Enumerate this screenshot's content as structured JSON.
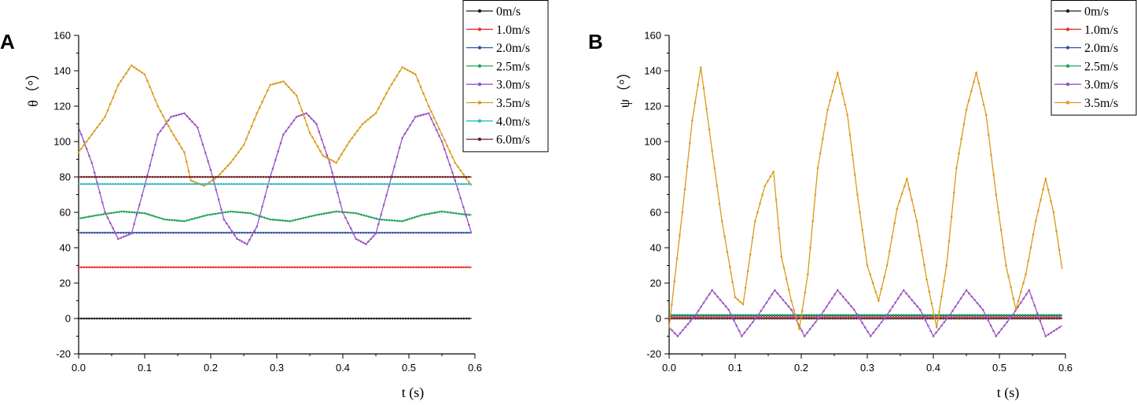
{
  "chart_data": [
    {
      "panel": "A",
      "type": "line",
      "xlabel": "t (s)",
      "ylabel": "θ（°）",
      "xlim": [
        0.0,
        0.6
      ],
      "ylim": [
        -20,
        160
      ],
      "xticks": [
        0.0,
        0.1,
        0.2,
        0.3,
        0.4,
        0.5,
        0.6
      ],
      "xtick_labels": [
        "0.0",
        "0.1",
        "0.2",
        "0.3",
        "0.4",
        "0.5",
        "0.6"
      ],
      "yticks": [
        -20,
        0,
        20,
        40,
        60,
        80,
        100,
        120,
        140,
        160
      ],
      "ytick_labels": [
        "-20",
        "0",
        "20",
        "40",
        "60",
        "80",
        "100",
        "120",
        "140",
        "160"
      ],
      "legend_position": "top-right",
      "series": [
        {
          "name": "0m/s",
          "color": "#1a1a1a",
          "x": [
            0.0,
            0.595
          ],
          "y": [
            0,
            0
          ]
        },
        {
          "name": "1.0m/s",
          "color": "#e8312f",
          "x": [
            0.0,
            0.595
          ],
          "y": [
            29,
            29
          ]
        },
        {
          "name": "2.0m/s",
          "color": "#2d56a8",
          "x": [
            0.0,
            0.595
          ],
          "y": [
            48.5,
            48.5
          ]
        },
        {
          "name": "2.5m/s",
          "color": "#22a35a",
          "x": [
            0.0,
            0.03,
            0.065,
            0.1,
            0.13,
            0.16,
            0.195,
            0.23,
            0.26,
            0.29,
            0.32,
            0.36,
            0.39,
            0.42,
            0.455,
            0.49,
            0.52,
            0.55,
            0.58,
            0.595
          ],
          "y": [
            56.5,
            58.5,
            60.5,
            59.5,
            56,
            55,
            58.5,
            60.5,
            59.5,
            56,
            55,
            58.5,
            60.5,
            59.5,
            56,
            55,
            58.5,
            60.5,
            59,
            58.5
          ]
        },
        {
          "name": "3.0m/s",
          "color": "#9a52c4",
          "x": [
            0.0,
            0.02,
            0.04,
            0.06,
            0.08,
            0.1,
            0.12,
            0.14,
            0.16,
            0.18,
            0.2,
            0.22,
            0.24,
            0.255,
            0.27,
            0.29,
            0.31,
            0.33,
            0.345,
            0.36,
            0.38,
            0.4,
            0.42,
            0.435,
            0.45,
            0.47,
            0.49,
            0.51,
            0.53,
            0.55,
            0.57,
            0.595
          ],
          "y": [
            108,
            88,
            60,
            45,
            48,
            75,
            104,
            114,
            116,
            108,
            84,
            56,
            45,
            42,
            52,
            80,
            104,
            114,
            116,
            110,
            88,
            60,
            45,
            42,
            48,
            75,
            102,
            114,
            116,
            100,
            78,
            48
          ]
        },
        {
          "name": "3.5m/s",
          "color": "#d99a19",
          "x": [
            0.0,
            0.02,
            0.04,
            0.06,
            0.08,
            0.1,
            0.12,
            0.14,
            0.16,
            0.17,
            0.19,
            0.21,
            0.23,
            0.25,
            0.27,
            0.29,
            0.31,
            0.33,
            0.35,
            0.37,
            0.39,
            0.41,
            0.43,
            0.45,
            0.47,
            0.49,
            0.51,
            0.53,
            0.55,
            0.57,
            0.595
          ],
          "y": [
            94,
            104,
            114,
            132,
            143,
            138,
            120,
            106,
            94,
            78,
            75,
            80,
            88,
            98,
            116,
            132,
            134,
            126,
            105,
            92,
            88,
            100,
            110,
            116,
            130,
            142,
            138,
            120,
            104,
            88,
            75
          ]
        },
        {
          "name": "4.0m/s",
          "color": "#2ab8c8",
          "x": [
            0.0,
            0.595
          ],
          "y": [
            76,
            76
          ]
        },
        {
          "name": "6.0m/s",
          "color": "#6b1f1f",
          "x": [
            0.0,
            0.595
          ],
          "y": [
            80,
            80
          ]
        }
      ]
    },
    {
      "panel": "B",
      "type": "line",
      "xlabel": "t (s)",
      "ylabel": "ψ（°）",
      "xlim": [
        0.0,
        0.6
      ],
      "ylim": [
        -20,
        160
      ],
      "xticks": [
        0.0,
        0.1,
        0.2,
        0.3,
        0.4,
        0.5,
        0.6
      ],
      "xtick_labels": [
        "0.0",
        "0.1",
        "0.2",
        "0.3",
        "0.4",
        "0.5",
        "0.6"
      ],
      "yticks": [
        -20,
        0,
        20,
        40,
        60,
        80,
        100,
        120,
        140,
        160
      ],
      "ytick_labels": [
        "-20",
        "0",
        "20",
        "40",
        "60",
        "80",
        "100",
        "120",
        "140",
        "160"
      ],
      "legend_position": "top-right",
      "series": [
        {
          "name": "0m/s",
          "color": "#1a1a1a",
          "x": [
            0.0,
            0.595
          ],
          "y": [
            0,
            0
          ]
        },
        {
          "name": "1.0m/s",
          "color": "#e8312f",
          "x": [
            0.0,
            0.595
          ],
          "y": [
            0.5,
            0.5
          ]
        },
        {
          "name": "2.0m/s",
          "color": "#2d56a8",
          "x": [
            0.0,
            0.595
          ],
          "y": [
            1.5,
            1.5
          ]
        },
        {
          "name": "2.5m/s",
          "color": "#22a35a",
          "x": [
            0.0,
            0.595
          ],
          "y": [
            2,
            2
          ]
        },
        {
          "name": "3.0m/s",
          "color": "#9a52c4",
          "x": [
            0.0,
            0.013,
            0.04,
            0.065,
            0.09,
            0.11,
            0.135,
            0.16,
            0.185,
            0.205,
            0.23,
            0.255,
            0.28,
            0.305,
            0.33,
            0.355,
            0.38,
            0.4,
            0.425,
            0.45,
            0.475,
            0.495,
            0.52,
            0.545,
            0.57,
            0.595
          ],
          "y": [
            -5,
            -10,
            2,
            16,
            5,
            -10,
            2,
            16,
            5,
            -10,
            2,
            16,
            5,
            -10,
            2,
            16,
            5,
            -10,
            2,
            16,
            5,
            -10,
            2,
            16,
            -10,
            -4
          ]
        },
        {
          "name": "3.5m/s",
          "color": "#d99a19",
          "x": [
            0.0,
            0.02,
            0.035,
            0.048,
            0.065,
            0.08,
            0.1,
            0.112,
            0.13,
            0.145,
            0.158,
            0.17,
            0.185,
            0.197,
            0.21,
            0.225,
            0.24,
            0.255,
            0.27,
            0.285,
            0.3,
            0.317,
            0.33,
            0.345,
            0.36,
            0.375,
            0.39,
            0.405,
            0.42,
            0.435,
            0.45,
            0.465,
            0.48,
            0.495,
            0.51,
            0.525,
            0.54,
            0.555,
            0.57,
            0.582,
            0.595
          ],
          "y": [
            -5,
            60,
            112,
            142,
            95,
            55,
            12,
            8,
            55,
            75,
            83,
            35,
            10,
            -6,
            25,
            85,
            118,
            139,
            115,
            70,
            30,
            10,
            30,
            62,
            79,
            55,
            22,
            -5,
            30,
            85,
            118,
            139,
            115,
            70,
            30,
            5,
            25,
            55,
            79,
            60,
            28
          ]
        }
      ]
    }
  ]
}
